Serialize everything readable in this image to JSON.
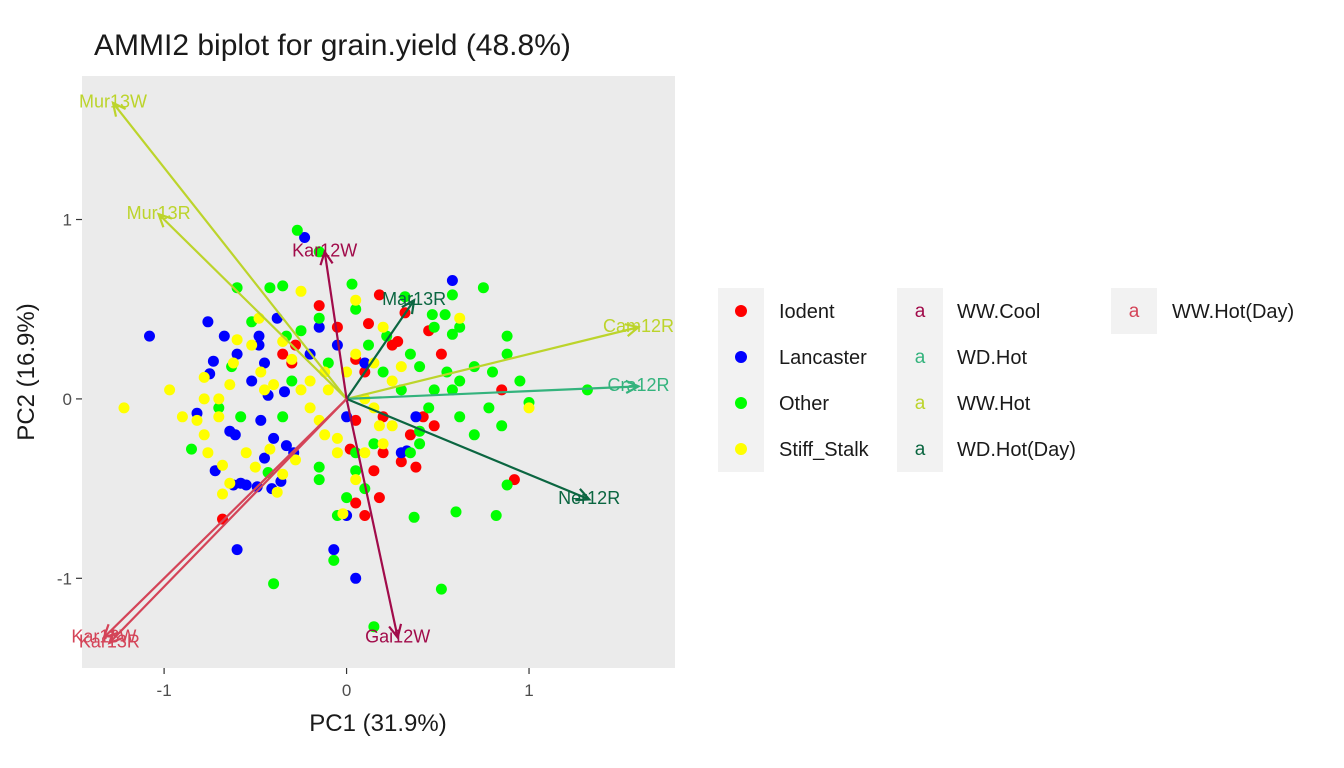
{
  "chart_data": {
    "type": "scatter",
    "title": "AMMI2 biplot for grain.yield (48.8%)",
    "xlabel": "PC1 (31.9%)",
    "ylabel": "PC2 (16.9%)",
    "xlim": [
      -1.45,
      1.8
    ],
    "ylim": [
      -1.5,
      1.8
    ],
    "xticks": [
      -1,
      0,
      1
    ],
    "yticks": [
      -1,
      0,
      1
    ],
    "xtick_labels": [
      "-1",
      "0",
      "1"
    ],
    "ytick_labels": [
      "-1",
      "0",
      "1"
    ],
    "genotype_groups": [
      {
        "name": "Iodent",
        "color": "#ff0000",
        "points": [
          [
            0.12,
            0.42
          ],
          [
            0.28,
            0.32
          ],
          [
            0.18,
            0.58
          ],
          [
            0.05,
            0.22
          ],
          [
            0.1,
            0.15
          ],
          [
            -0.35,
            0.25
          ],
          [
            -0.3,
            0.2
          ],
          [
            0.52,
            0.25
          ],
          [
            0.85,
            0.05
          ],
          [
            0.92,
            -0.45
          ],
          [
            0.3,
            -0.35
          ],
          [
            0.35,
            -0.2
          ],
          [
            0.2,
            -0.3
          ],
          [
            0.15,
            -0.4
          ],
          [
            0.1,
            -0.65
          ],
          [
            0.18,
            -0.55
          ],
          [
            -0.68,
            -0.67
          ],
          [
            0.05,
            -0.58
          ],
          [
            -0.15,
            0.52
          ],
          [
            0.48,
            -0.15
          ],
          [
            -0.05,
            0.4
          ],
          [
            0.38,
            -0.38
          ],
          [
            0.42,
            -0.1
          ],
          [
            0.25,
            0.3
          ],
          [
            0.02,
            -0.28
          ],
          [
            -0.28,
            0.3
          ],
          [
            0.2,
            -0.1
          ],
          [
            0.32,
            0.48
          ],
          [
            0.45,
            0.38
          ],
          [
            0.05,
            -0.12
          ]
        ]
      },
      {
        "name": "Lancaster",
        "color": "#0000ff",
        "points": [
          [
            -1.08,
            0.35
          ],
          [
            -0.76,
            0.43
          ],
          [
            -0.67,
            0.35
          ],
          [
            -0.73,
            0.21
          ],
          [
            -0.75,
            0.14
          ],
          [
            -0.38,
            0.45
          ],
          [
            -0.48,
            0.3
          ],
          [
            -0.52,
            0.1
          ],
          [
            -0.6,
            0.25
          ],
          [
            -0.45,
            0.2
          ],
          [
            -0.43,
            0.02
          ],
          [
            -0.47,
            -0.12
          ],
          [
            -0.4,
            -0.22
          ],
          [
            -0.33,
            -0.26
          ],
          [
            -0.45,
            -0.33
          ],
          [
            -0.41,
            -0.5
          ],
          [
            -0.58,
            -0.47
          ],
          [
            -0.6,
            -0.84
          ],
          [
            -0.07,
            -0.84
          ],
          [
            0.05,
            -1.0
          ],
          [
            -0.23,
            0.9
          ],
          [
            0.58,
            0.66
          ],
          [
            -0.61,
            -0.2
          ],
          [
            -0.55,
            -0.48
          ],
          [
            -0.72,
            -0.4
          ],
          [
            -0.64,
            -0.18
          ],
          [
            -0.36,
            -0.46
          ],
          [
            -0.62,
            -0.48
          ],
          [
            -0.34,
            0.04
          ],
          [
            0.3,
            -0.3
          ],
          [
            0.33,
            -0.29
          ],
          [
            -0.15,
            0.4
          ],
          [
            -0.48,
            0.35
          ],
          [
            0.0,
            -0.1
          ],
          [
            0.1,
            0.2
          ],
          [
            -0.29,
            -0.3
          ],
          [
            -0.49,
            -0.49
          ],
          [
            0.0,
            -0.65
          ],
          [
            -0.05,
            0.3
          ],
          [
            -0.2,
            0.25
          ],
          [
            0.38,
            -0.1
          ],
          [
            -0.82,
            -0.08
          ]
        ]
      },
      {
        "name": "Other",
        "color": "#00ff00",
        "points": [
          [
            -0.27,
            0.94
          ],
          [
            -0.15,
            0.82
          ],
          [
            -0.6,
            0.62
          ],
          [
            -0.42,
            0.62
          ],
          [
            -0.35,
            0.63
          ],
          [
            0.03,
            0.64
          ],
          [
            0.32,
            0.57
          ],
          [
            0.47,
            0.47
          ],
          [
            0.54,
            0.47
          ],
          [
            0.58,
            0.36
          ],
          [
            0.62,
            0.4
          ],
          [
            0.75,
            0.62
          ],
          [
            0.88,
            0.35
          ],
          [
            0.95,
            0.1
          ],
          [
            1.0,
            -0.02
          ],
          [
            1.32,
            0.05
          ],
          [
            0.88,
            0.25
          ],
          [
            0.8,
            0.15
          ],
          [
            0.7,
            0.18
          ],
          [
            0.62,
            0.1
          ],
          [
            0.55,
            0.15
          ],
          [
            0.58,
            0.05
          ],
          [
            0.48,
            0.05
          ],
          [
            0.45,
            -0.05
          ],
          [
            0.4,
            -0.18
          ],
          [
            0.35,
            -0.3
          ],
          [
            0.62,
            -0.1
          ],
          [
            0.7,
            -0.2
          ],
          [
            0.85,
            -0.15
          ],
          [
            0.78,
            -0.05
          ],
          [
            0.88,
            -0.48
          ],
          [
            0.82,
            -0.65
          ],
          [
            0.6,
            -0.63
          ],
          [
            0.37,
            -0.66
          ],
          [
            0.52,
            -1.06
          ],
          [
            0.15,
            -1.27
          ],
          [
            -0.4,
            -1.03
          ],
          [
            -0.07,
            -0.9
          ],
          [
            -0.05,
            -0.65
          ],
          [
            -0.15,
            -0.45
          ],
          [
            -0.15,
            -0.38
          ],
          [
            0.05,
            -0.3
          ],
          [
            0.15,
            -0.25
          ],
          [
            0.05,
            -0.4
          ],
          [
            0.1,
            -0.5
          ],
          [
            0.0,
            -0.55
          ],
          [
            -0.85,
            -0.28
          ],
          [
            -0.7,
            -0.05
          ],
          [
            -0.63,
            0.18
          ],
          [
            -0.58,
            -0.1
          ],
          [
            -0.35,
            -0.1
          ],
          [
            -0.3,
            0.1
          ],
          [
            -0.25,
            0.38
          ],
          [
            -0.15,
            0.45
          ],
          [
            -0.1,
            0.2
          ],
          [
            0.05,
            0.5
          ],
          [
            0.12,
            0.3
          ],
          [
            0.22,
            0.35
          ],
          [
            0.35,
            0.25
          ],
          [
            0.4,
            0.18
          ],
          [
            0.48,
            0.4
          ],
          [
            0.58,
            0.58
          ],
          [
            0.3,
            0.05
          ],
          [
            0.2,
            0.15
          ],
          [
            -0.52,
            0.43
          ],
          [
            -0.33,
            0.35
          ],
          [
            0.4,
            -0.25
          ],
          [
            -0.43,
            -0.41
          ]
        ]
      },
      {
        "name": "Stiff_Stalk",
        "color": "#ffff00",
        "points": [
          [
            -1.22,
            -0.05
          ],
          [
            -0.97,
            0.05
          ],
          [
            -0.78,
            0.12
          ],
          [
            -0.78,
            0.0
          ],
          [
            -0.7,
            0.0
          ],
          [
            -0.64,
            0.08
          ],
          [
            -0.62,
            0.2
          ],
          [
            -0.6,
            0.33
          ],
          [
            -0.52,
            0.3
          ],
          [
            -0.47,
            0.15
          ],
          [
            -0.4,
            0.08
          ],
          [
            -0.82,
            -0.12
          ],
          [
            -0.78,
            -0.2
          ],
          [
            -0.76,
            -0.3
          ],
          [
            -0.68,
            -0.37
          ],
          [
            -0.68,
            -0.53
          ],
          [
            -0.64,
            -0.47
          ],
          [
            -0.5,
            -0.38
          ],
          [
            -0.42,
            -0.28
          ],
          [
            -0.38,
            -0.52
          ],
          [
            -0.35,
            -0.42
          ],
          [
            -0.28,
            -0.34
          ],
          [
            -0.12,
            -0.2
          ],
          [
            -0.05,
            -0.3
          ],
          [
            0.05,
            -0.45
          ],
          [
            -0.02,
            -0.64
          ],
          [
            0.1,
            -0.3
          ],
          [
            0.2,
            -0.25
          ],
          [
            0.25,
            -0.15
          ],
          [
            0.1,
            0.0
          ],
          [
            0.25,
            0.1
          ],
          [
            0.15,
            0.2
          ],
          [
            0.05,
            0.25
          ],
          [
            -0.12,
            0.15
          ],
          [
            -0.25,
            0.05
          ],
          [
            -0.35,
            0.32
          ],
          [
            -0.48,
            0.45
          ],
          [
            -0.25,
            0.6
          ],
          [
            0.05,
            0.55
          ],
          [
            0.2,
            0.4
          ],
          [
            0.3,
            0.18
          ],
          [
            0.62,
            0.45
          ],
          [
            1.0,
            -0.05
          ],
          [
            -0.2,
            0.1
          ],
          [
            -0.15,
            -0.12
          ],
          [
            -0.05,
            -0.22
          ],
          [
            0.15,
            -0.05
          ],
          [
            -0.9,
            -0.1
          ],
          [
            -0.55,
            -0.3
          ],
          [
            -0.3,
            0.22
          ],
          [
            -0.2,
            -0.05
          ],
          [
            -0.1,
            0.05
          ],
          [
            -0.7,
            -0.1
          ],
          [
            -0.45,
            0.05
          ],
          [
            0.0,
            0.15
          ],
          [
            0.18,
            -0.15
          ]
        ]
      }
    ],
    "environment_vectors": [
      {
        "label": "Mur13W",
        "group": "WW.Hot",
        "color": "#bcd42b",
        "x": -1.28,
        "y": 1.65
      },
      {
        "label": "Mur13R",
        "group": "WW.Hot",
        "color": "#bcd42b",
        "x": -1.03,
        "y": 1.03
      },
      {
        "label": "Cam12R",
        "group": "WW.Hot",
        "color": "#bcd42b",
        "x": 1.6,
        "y": 0.4
      },
      {
        "label": "Cra12R",
        "group": "WD.Hot",
        "color": "#34b37d",
        "x": 1.6,
        "y": 0.07
      },
      {
        "label": "Mar13R",
        "group": "WD.Hot(Day)",
        "color": "#0b6641",
        "x": 0.37,
        "y": 0.55
      },
      {
        "label": "Ner12R",
        "group": "WD.Hot(Day)",
        "color": "#0b6641",
        "x": 1.33,
        "y": -0.56
      },
      {
        "label": "Kar12W",
        "group": "WW.Cool",
        "color": "#a10b4a",
        "x": -0.12,
        "y": 0.82
      },
      {
        "label": "Gai12W",
        "group": "WW.Cool",
        "color": "#a10b4a",
        "x": 0.28,
        "y": -1.33
      },
      {
        "label": "Kar13W",
        "group": "WW.Hot(Day)",
        "color": "#d44458",
        "x": -1.33,
        "y": -1.33
      },
      {
        "label": "Kar13R",
        "group": "WW.Hot(Day)",
        "color": "#d44458",
        "x": -1.3,
        "y": -1.36
      }
    ],
    "legend": {
      "position": "right",
      "genotype_entries": [
        "Iodent",
        "Lancaster",
        "Other",
        "Stiff_Stalk"
      ],
      "environment_key_glyph": "a",
      "environment_entries": [
        {
          "label": "WW.Cool",
          "color": "#a10b4a"
        },
        {
          "label": "WD.Hot",
          "color": "#34b37d"
        },
        {
          "label": "WW.Hot",
          "color": "#bcd42b"
        },
        {
          "label": "WD.Hot(Day)",
          "color": "#0b6641"
        },
        {
          "label": "WW.Hot(Day)",
          "color": "#d44458"
        }
      ]
    },
    "panel_background": "#ebebeb",
    "grid": false
  }
}
